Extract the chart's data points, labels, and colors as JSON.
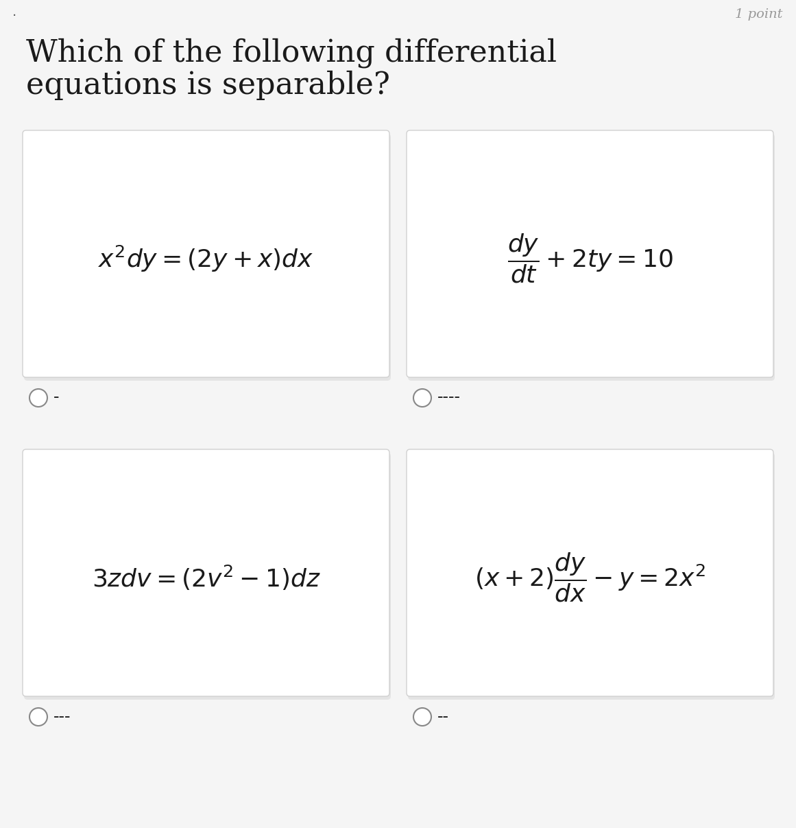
{
  "title_line1": "Which of the following differential",
  "title_line2": "equations is separable?",
  "point_label": "1 point",
  "background_color": "#f5f5f5",
  "box_color": "#ffffff",
  "box_border_color": "#d0d0d0",
  "text_color": "#1a1a1a",
  "gray_text": "#999999",
  "equations": [
    "$x^2dy = (2y + x)dx$",
    "$\\dfrac{dy}{dt} + 2ty = 10$",
    "$3zdv = (2v^2 - 1)dz$",
    "$(x + 2)\\dfrac{dy}{dx} - y = 2x^2$"
  ],
  "option_labels": [
    "-",
    "----",
    "---",
    "--"
  ],
  "title_fontsize": 32,
  "eq_fontsize": 26,
  "label_fontsize": 18,
  "point_fontsize": 14
}
